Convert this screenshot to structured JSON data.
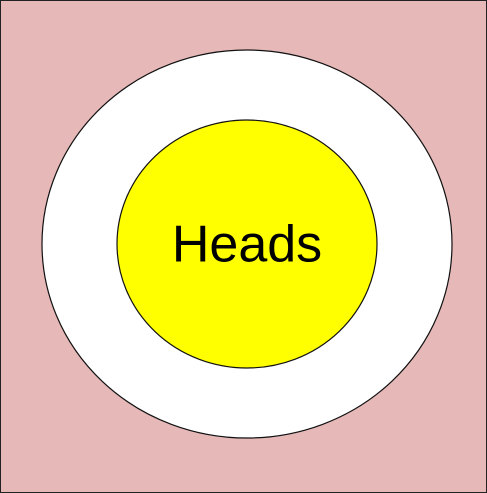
{
  "diagram": {
    "center_label": "Heads"
  },
  "colors": {
    "background": "#e6b8b8",
    "outer_ring": "#ffffff",
    "inner_disc": "#ffff00",
    "stroke": "#111111"
  }
}
